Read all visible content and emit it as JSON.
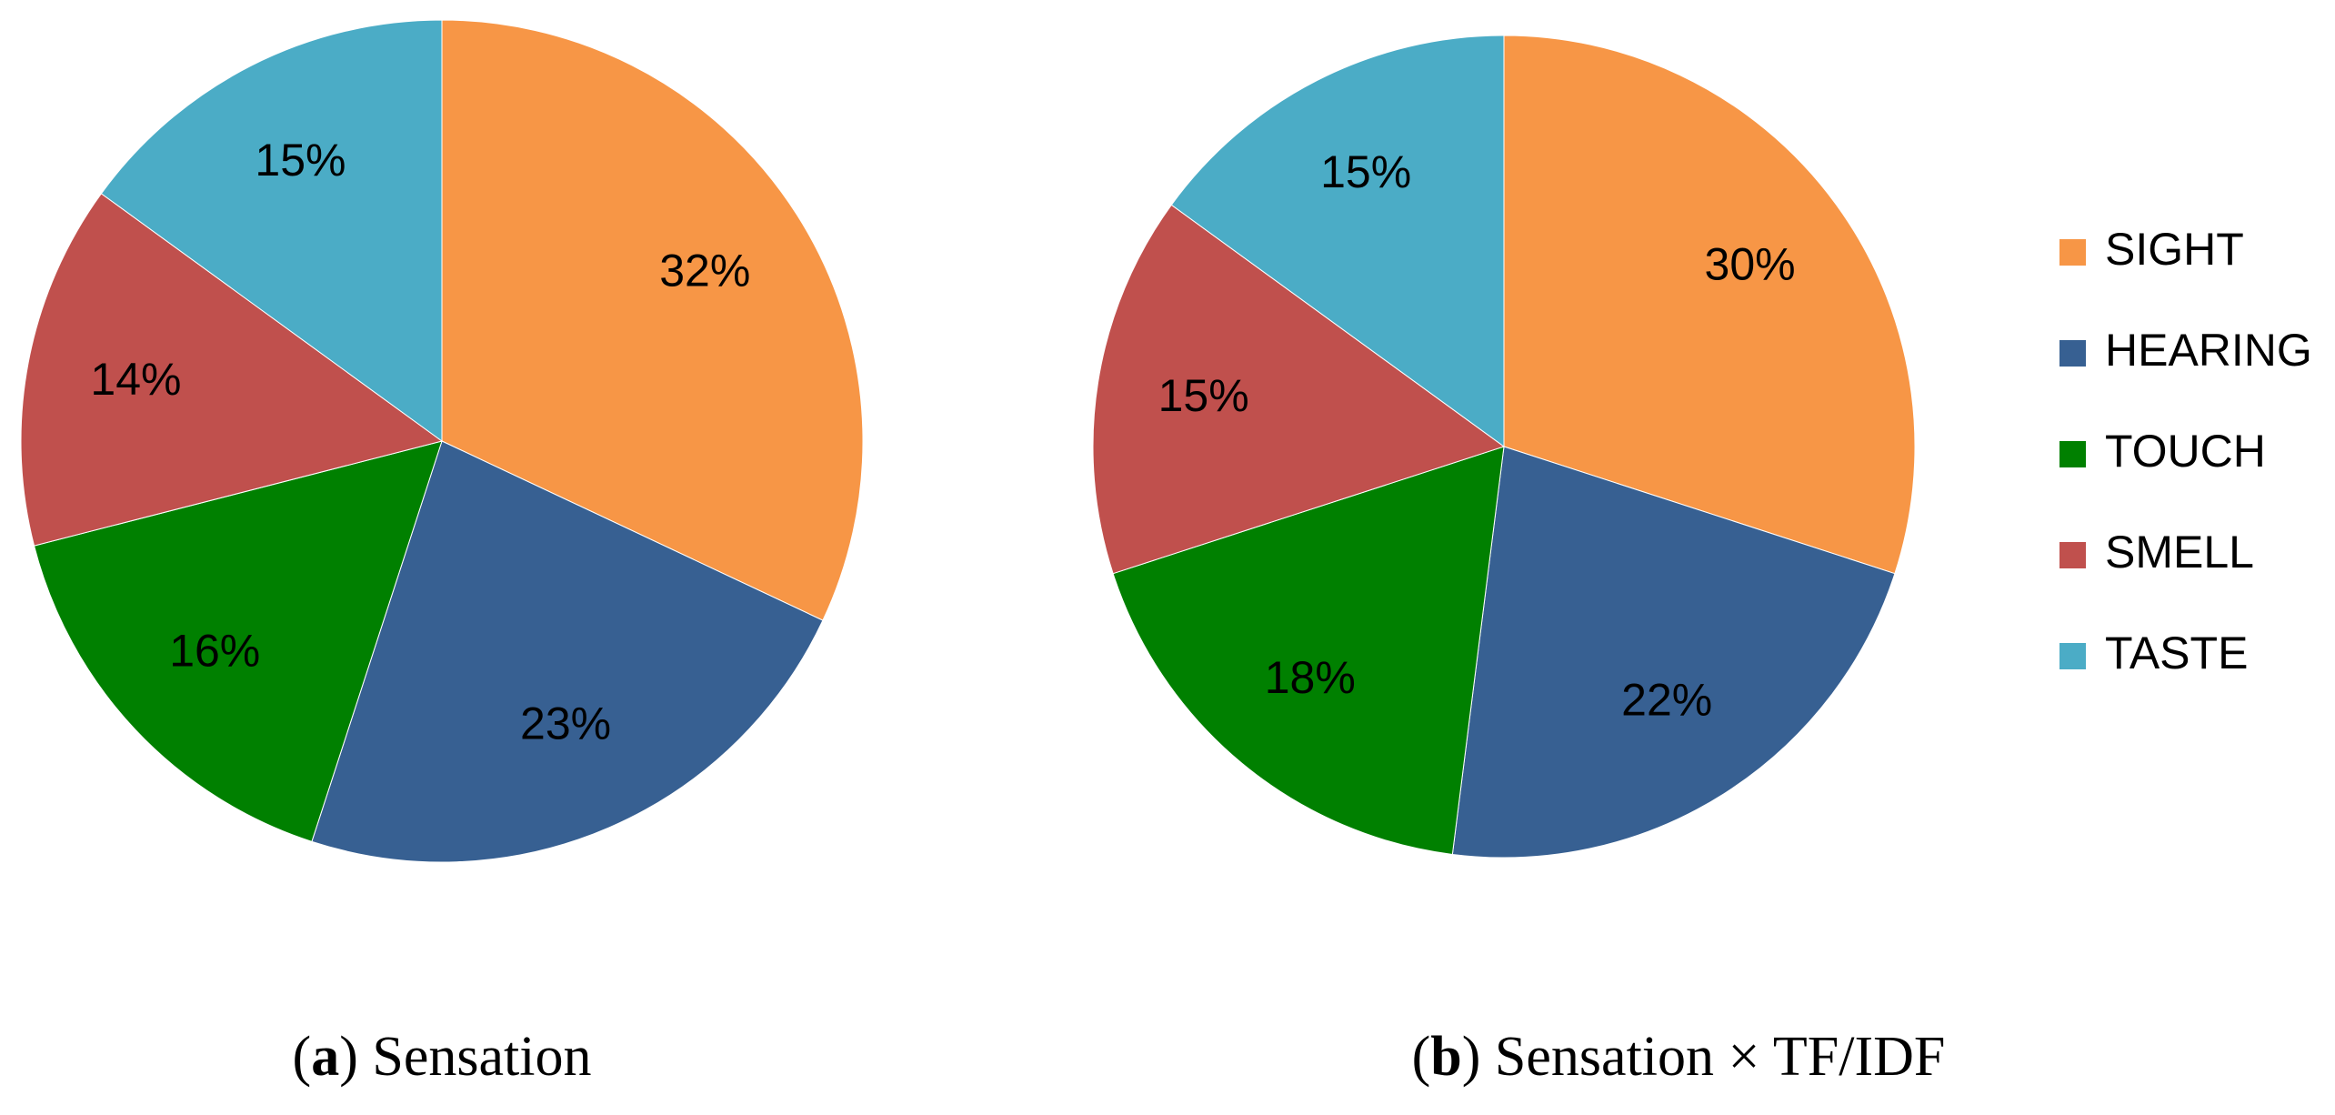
{
  "chart_data": [
    {
      "type": "pie",
      "categories": [
        "SIGHT",
        "HEARING",
        "TOUCH",
        "SMELL",
        "TASTE"
      ],
      "values": [
        32,
        23,
        16,
        14,
        15
      ],
      "value_labels": [
        "32%",
        "23%",
        "16%",
        "14%",
        "15%"
      ],
      "colors": [
        "#f79646",
        "#376092",
        "#008000",
        "#c0504d",
        "#4bacc6"
      ],
      "caption_parts": [
        "(",
        "a",
        ") Sensation"
      ],
      "legend": "right"
    },
    {
      "type": "pie",
      "categories": [
        "SIGHT",
        "HEARING",
        "TOUCH",
        "SMELL",
        "TASTE"
      ],
      "values": [
        30,
        22,
        18,
        15,
        15
      ],
      "value_labels": [
        "30%",
        "22%",
        "18%",
        "15%",
        "15%"
      ],
      "colors": [
        "#f79646",
        "#376092",
        "#008000",
        "#c0504d",
        "#4bacc6"
      ],
      "caption_parts": [
        "(",
        "b",
        ") Sensation × TF/IDF"
      ]
    }
  ]
}
